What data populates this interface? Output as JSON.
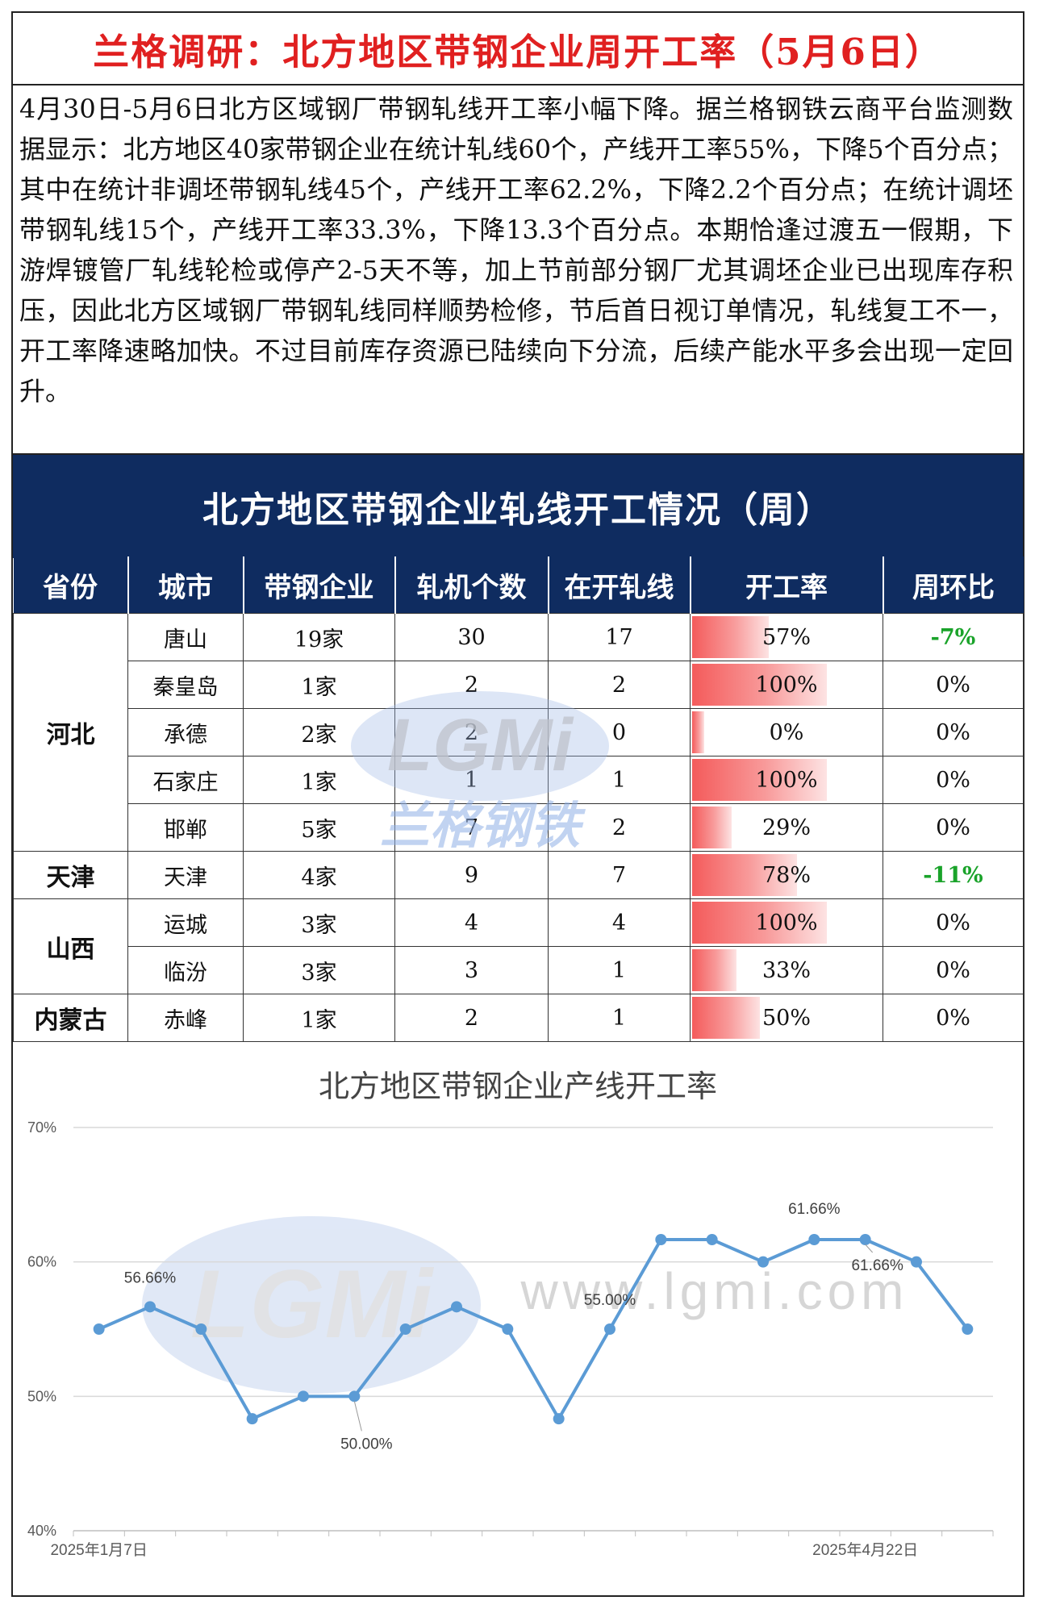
{
  "header": {
    "title": "兰格调研：北方地区带钢企业周开工率（5月6日）"
  },
  "summary": "4月30日-5月6日北方区域钢厂带钢轧线开工率小幅下降。据兰格钢铁云商平台监测数据显示：北方地区40家带钢企业在统计轧线60个，产线开工率55%，下降5个百分点；其中在统计非调坯带钢轧线45个，产线开工率62.2%，下降2.2个百分点；在统计调坯带钢轧线15个，产线开工率33.3%，下降13.3个百分点。本期恰逢过渡五一假期，下游焊镀管厂轧线轮检或停产2-5天不等，加上节前部分钢厂尤其调坯企业已出现库存积压，因此北方区域钢厂带钢轧线同样顺势检修，节后首日视订单情况，轧线复工不一，开工率降速略加快。不过目前库存资源已陆续向下分流，后续产能水平多会出现一定回升。",
  "table": {
    "title": "北方地区带钢企业轧线开工情况（周）",
    "columns": [
      "省份",
      "城市",
      "带钢企业",
      "轧机个数",
      "在开轧线",
      "开工率",
      "周环比"
    ],
    "groups": [
      {
        "province": "河北",
        "rows": [
          {
            "city": "唐山",
            "companies": "19家",
            "mills": "30",
            "open": "17",
            "rate": "57%",
            "rate_value": 0.57,
            "wow": "-7%",
            "wow_green": true
          },
          {
            "city": "秦皇岛",
            "companies": "1家",
            "mills": "2",
            "open": "2",
            "rate": "100%",
            "rate_value": 1.0,
            "wow": "0%",
            "wow_green": false
          },
          {
            "city": "承德",
            "companies": "2家",
            "mills": "2",
            "open": "0",
            "rate": "0%",
            "rate_value": 0.0,
            "wow": "0%",
            "wow_green": false
          },
          {
            "city": "石家庄",
            "companies": "1家",
            "mills": "1",
            "open": "1",
            "rate": "100%",
            "rate_value": 1.0,
            "wow": "0%",
            "wow_green": false
          },
          {
            "city": "邯郸",
            "companies": "5家",
            "mills": "7",
            "open": "2",
            "rate": "29%",
            "rate_value": 0.29,
            "wow": "0%",
            "wow_green": false
          }
        ]
      },
      {
        "province": "天津",
        "rows": [
          {
            "city": "天津",
            "companies": "4家",
            "mills": "9",
            "open": "7",
            "rate": "78%",
            "rate_value": 0.78,
            "wow": "-11%",
            "wow_green": true
          }
        ]
      },
      {
        "province": "山西",
        "rows": [
          {
            "city": "运城",
            "companies": "3家",
            "mills": "4",
            "open": "4",
            "rate": "100%",
            "rate_value": 1.0,
            "wow": "0%",
            "wow_green": false
          },
          {
            "city": "临汾",
            "companies": "3家",
            "mills": "3",
            "open": "1",
            "rate": "33%",
            "rate_value": 0.33,
            "wow": "0%",
            "wow_green": false
          }
        ]
      },
      {
        "province": "内蒙古",
        "rows": [
          {
            "city": "赤峰",
            "companies": "1家",
            "mills": "2",
            "open": "1",
            "rate": "50%",
            "rate_value": 0.5,
            "wow": "0%",
            "wow_green": false
          }
        ]
      }
    ]
  },
  "watermark": {
    "logo": "LGMi",
    "cn": "兰格钢铁",
    "url": "www.lgmi.com"
  },
  "colors": {
    "title_red": "#e02020",
    "navy": "#0f2c60",
    "line": "#5b9bd5",
    "green": "#1aa32a",
    "bar": "#f45b5b"
  },
  "chart_data": {
    "type": "line",
    "title": "北方地区带钢企业产线开工率",
    "ylim": [
      0.4,
      0.7
    ],
    "yticks": [
      "40%",
      "50%",
      "60%",
      "70%"
    ],
    "ytick_values": [
      0.4,
      0.5,
      0.6,
      0.7
    ],
    "x_labels": [
      "2025年1月7日",
      "2025年4月22日"
    ],
    "x_label_indices": [
      0,
      15
    ],
    "grid": true,
    "legend": "none",
    "series": [
      {
        "values": [
          0.55,
          0.5666,
          0.55,
          0.4833,
          0.5,
          0.5,
          0.55,
          0.5666,
          0.55,
          0.4833,
          0.55,
          0.6166,
          0.6166,
          0.6,
          0.6166,
          0.6166,
          0.6,
          0.55
        ]
      }
    ],
    "data_labels": [
      {
        "index": 1,
        "text": "56.66%"
      },
      {
        "index": 5,
        "text": "50.00%"
      },
      {
        "index": 10,
        "text": "55.00%"
      },
      {
        "index": 14,
        "text": "61.66%"
      },
      {
        "index": 15,
        "text": "61.66%"
      }
    ]
  }
}
